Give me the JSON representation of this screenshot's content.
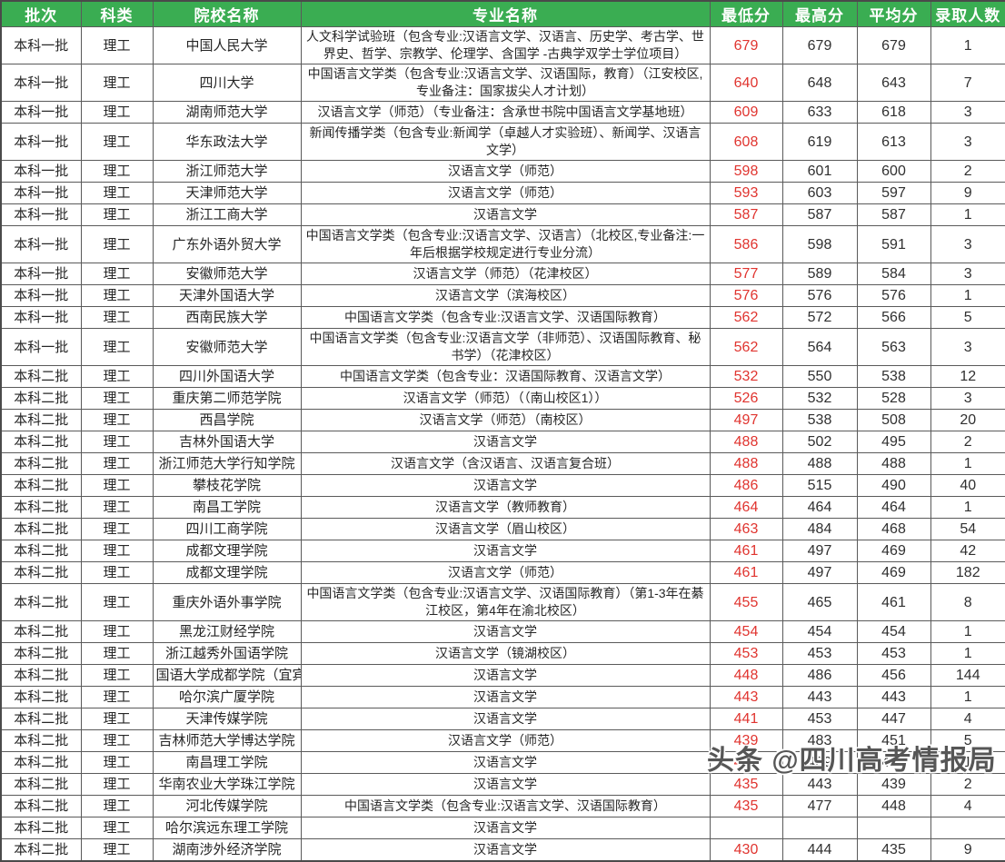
{
  "colors": {
    "header_bg": "#3aad52",
    "header_text": "#ffffff",
    "min_score_text": "#e0342f",
    "body_text": "#262626",
    "border": "#5a5a5a"
  },
  "watermark": {
    "text": "头条 @四川高考情报局"
  },
  "table": {
    "columns": [
      {
        "key": "batch",
        "label": "批次"
      },
      {
        "key": "category",
        "label": "科类"
      },
      {
        "key": "school",
        "label": "院校名称"
      },
      {
        "key": "major",
        "label": "专业名称"
      },
      {
        "key": "min",
        "label": "最低分"
      },
      {
        "key": "max",
        "label": "最高分"
      },
      {
        "key": "avg",
        "label": "平均分"
      },
      {
        "key": "count",
        "label": "录取人数"
      }
    ],
    "rows": [
      {
        "batch": "本科一批",
        "category": "理工",
        "school": "中国人民大学",
        "major": "人文科学试验班（包含专业:汉语言文学、汉语言、历史学、考古学、世界史、哲学、宗教学、伦理学、含国学 -古典学双学士学位项目）",
        "min": "679",
        "max": "679",
        "avg": "679",
        "count": "1"
      },
      {
        "batch": "本科一批",
        "category": "理工",
        "school": "四川大学",
        "major": "中国语言文学类（包含专业:汉语言文学、汉语国际，教育）（江安校区,专业备注：国家拔尖人才计划）",
        "min": "640",
        "max": "648",
        "avg": "643",
        "count": "7"
      },
      {
        "batch": "本科一批",
        "category": "理工",
        "school": "湖南师范大学",
        "major": "汉语言文学（师范）（专业备注：含承世书院中国语言文学基地班）",
        "min": "609",
        "max": "633",
        "avg": "618",
        "count": "3"
      },
      {
        "batch": "本科一批",
        "category": "理工",
        "school": "华东政法大学",
        "major": "新闻传播学类（包含专业:新闻学（卓越人才实验班）、新闻学、汉语言文学）",
        "min": "608",
        "max": "619",
        "avg": "613",
        "count": "3"
      },
      {
        "batch": "本科一批",
        "category": "理工",
        "school": "浙江师范大学",
        "major": "汉语言文学（师范）",
        "min": "598",
        "max": "601",
        "avg": "600",
        "count": "2"
      },
      {
        "batch": "本科一批",
        "category": "理工",
        "school": "天津师范大学",
        "major": "汉语言文学（师范）",
        "min": "593",
        "max": "603",
        "avg": "597",
        "count": "9"
      },
      {
        "batch": "本科一批",
        "category": "理工",
        "school": "浙江工商大学",
        "major": "汉语言文学",
        "min": "587",
        "max": "587",
        "avg": "587",
        "count": "1"
      },
      {
        "batch": "本科一批",
        "category": "理工",
        "school": "广东外语外贸大学",
        "major": "中国语言文学类（包含专业:汉语言文学、汉语言）（北校区,专业备注:一年后根据学校规定进行专业分流）",
        "min": "586",
        "max": "598",
        "avg": "591",
        "count": "3"
      },
      {
        "batch": "本科一批",
        "category": "理工",
        "school": "安徽师范大学",
        "major": "汉语言文学（师范）（花津校区）",
        "min": "577",
        "max": "589",
        "avg": "584",
        "count": "3"
      },
      {
        "batch": "本科一批",
        "category": "理工",
        "school": "天津外国语大学",
        "major": "汉语言文学（滨海校区）",
        "min": "576",
        "max": "576",
        "avg": "576",
        "count": "1"
      },
      {
        "batch": "本科一批",
        "category": "理工",
        "school": "西南民族大学",
        "major": "中国语言文学类（包含专业:汉语言文学、汉语国际教育）",
        "min": "562",
        "max": "572",
        "avg": "566",
        "count": "5"
      },
      {
        "batch": "本科一批",
        "category": "理工",
        "school": "安徽师范大学",
        "major": "中国语言文学类（包含专业:汉语言文学（非师范）、汉语国际教育、秘书学）（花津校区）",
        "min": "562",
        "max": "564",
        "avg": "563",
        "count": "3"
      },
      {
        "batch": "本科二批",
        "category": "理工",
        "school": "四川外国语大学",
        "major": "中国语言文学类（包含专业：汉语国际教育、汉语言文学）",
        "min": "532",
        "max": "550",
        "avg": "538",
        "count": "12"
      },
      {
        "batch": "本科二批",
        "category": "理工",
        "school": "重庆第二师范学院",
        "major": "汉语言文学（师范）（（南山校区1））",
        "min": "526",
        "max": "532",
        "avg": "528",
        "count": "3"
      },
      {
        "batch": "本科二批",
        "category": "理工",
        "school": "西昌学院",
        "major": "汉语言文学（师范）（南校区）",
        "min": "497",
        "max": "538",
        "avg": "508",
        "count": "20"
      },
      {
        "batch": "本科二批",
        "category": "理工",
        "school": "吉林外国语大学",
        "major": "汉语言文学",
        "min": "488",
        "max": "502",
        "avg": "495",
        "count": "2"
      },
      {
        "batch": "本科二批",
        "category": "理工",
        "school": "浙江师范大学行知学院",
        "major": "汉语言文学（含汉语言、汉语言复合班）",
        "min": "488",
        "max": "488",
        "avg": "488",
        "count": "1"
      },
      {
        "batch": "本科二批",
        "category": "理工",
        "school": "攀枝花学院",
        "major": "汉语言文学",
        "min": "486",
        "max": "515",
        "avg": "490",
        "count": "40"
      },
      {
        "batch": "本科二批",
        "category": "理工",
        "school": "南昌工学院",
        "major": "汉语言文学（教师教育）",
        "min": "464",
        "max": "464",
        "avg": "464",
        "count": "1"
      },
      {
        "batch": "本科二批",
        "category": "理工",
        "school": "四川工商学院",
        "major": "汉语言文学（眉山校区）",
        "min": "463",
        "max": "484",
        "avg": "468",
        "count": "54"
      },
      {
        "batch": "本科二批",
        "category": "理工",
        "school": "成都文理学院",
        "major": "汉语言文学",
        "min": "461",
        "max": "497",
        "avg": "469",
        "count": "42"
      },
      {
        "batch": "本科二批",
        "category": "理工",
        "school": "成都文理学院",
        "major": "汉语言文学（师范）",
        "min": "461",
        "max": "497",
        "avg": "469",
        "count": "182"
      },
      {
        "batch": "本科二批",
        "category": "理工",
        "school": "重庆外语外事学院",
        "major": "中国语言文学类（包含专业:汉语言文学、汉语国际教育）（第1-3年在綦江校区，第4年在渝北校区）",
        "min": "455",
        "max": "465",
        "avg": "461",
        "count": "8"
      },
      {
        "batch": "本科二批",
        "category": "理工",
        "school": "黑龙江财经学院",
        "major": "汉语言文学",
        "min": "454",
        "max": "454",
        "avg": "454",
        "count": "1"
      },
      {
        "batch": "本科二批",
        "category": "理工",
        "school": "浙江越秀外国语学院",
        "major": "汉语言文学（镜湖校区）",
        "min": "453",
        "max": "453",
        "avg": "453",
        "count": "1"
      },
      {
        "batch": "本科二批",
        "category": "理工",
        "school": "国语大学成都学院（宜宾",
        "major": "汉语言文学",
        "min": "448",
        "max": "486",
        "avg": "456",
        "count": "144"
      },
      {
        "batch": "本科二批",
        "category": "理工",
        "school": "哈尔滨广厦学院",
        "major": "汉语言文学",
        "min": "443",
        "max": "443",
        "avg": "443",
        "count": "1"
      },
      {
        "batch": "本科二批",
        "category": "理工",
        "school": "天津传媒学院",
        "major": "汉语言文学",
        "min": "441",
        "max": "453",
        "avg": "447",
        "count": "4"
      },
      {
        "batch": "本科二批",
        "category": "理工",
        "school": "吉林师范大学博达学院",
        "major": "汉语言文学（师范）",
        "min": "439",
        "max": "483",
        "avg": "451",
        "count": "5"
      },
      {
        "batch": "本科二批",
        "category": "理工",
        "school": "南昌理工学院",
        "major": "汉语言文学",
        "min": "439",
        "max": "439",
        "avg": "439",
        "count": "1"
      },
      {
        "batch": "本科二批",
        "category": "理工",
        "school": "华南农业大学珠江学院",
        "major": "汉语言文学",
        "min": "435",
        "max": "443",
        "avg": "439",
        "count": "2"
      },
      {
        "batch": "本科二批",
        "category": "理工",
        "school": "河北传媒学院",
        "major": "中国语言文学类（包含专业:汉语言文学、汉语国际教育）",
        "min": "435",
        "max": "477",
        "avg": "448",
        "count": "4"
      },
      {
        "batch": "本科二批",
        "category": "理工",
        "school": "哈尔滨远东理工学院",
        "major": "汉语言文学",
        "min": "",
        "max": "",
        "avg": "",
        "count": ""
      },
      {
        "batch": "本科二批",
        "category": "理工",
        "school": "湖南涉外经济学院",
        "major": "汉语言文学",
        "min": "430",
        "max": "444",
        "avg": "435",
        "count": "9"
      }
    ]
  }
}
